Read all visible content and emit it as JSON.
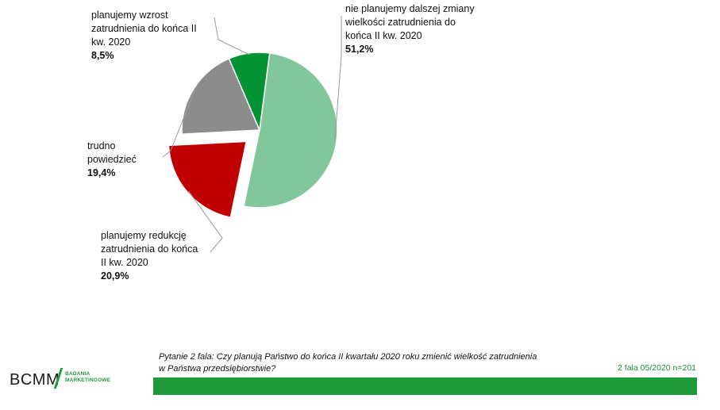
{
  "chart_data": {
    "type": "pie",
    "slices": [
      {
        "label": "nie planujemy dalszej zmiany\nwielkości zatrudnienia do\nkońca II kw. 2020",
        "value": 51.2,
        "value_label": "51,2%",
        "color": "#82c79b"
      },
      {
        "label": "planujemy redukcję\nzatrudnienia do końca\nII kw. 2020",
        "value": 20.9,
        "value_label": "20,9%",
        "color": "#c00000",
        "exploded": true
      },
      {
        "label": "trudno\npowiedzieć",
        "value": 19.4,
        "value_label": "19,4%",
        "color": "#8c8c8c"
      },
      {
        "label": "planujemy wzrost\nzatrudnienia do końca II\nkw. 2020",
        "value": 8.5,
        "value_label": "8,5%",
        "color": "#039234"
      }
    ]
  },
  "footer": {
    "question": "Pytanie 2 fala: Czy planują Państwo do końca II kwartału 2020 roku zmienić wielkość zatrudnienia\nw Państwa przedsiębiorstwie?",
    "wave": "2 fala 05/2020 n=201",
    "bar_color": "#1f9a3a"
  },
  "logo": {
    "main": "BCMM",
    "sub": "BADANIA\nMARKETINGOWE"
  }
}
